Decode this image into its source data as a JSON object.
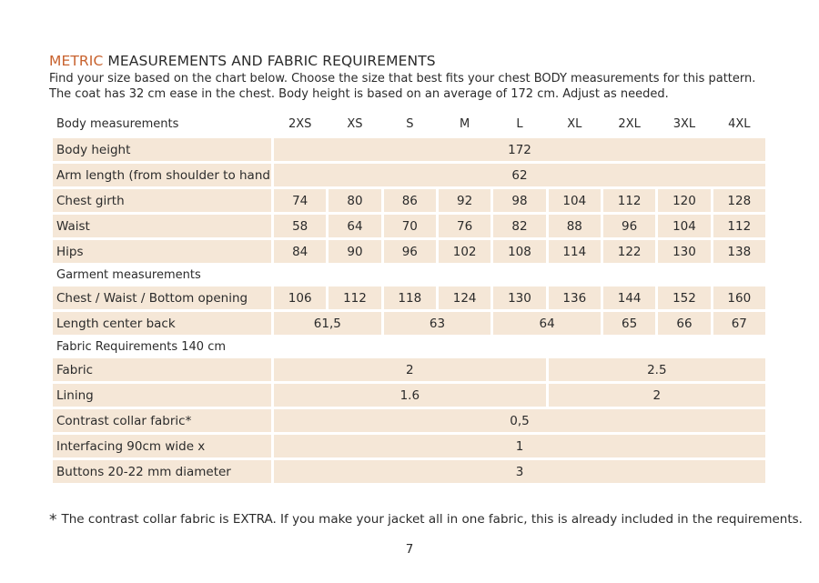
{
  "title": {
    "accent": "METRIC",
    "rest": " MEASUREMENTS AND FABRIC REQUIREMENTS"
  },
  "intro": {
    "line1": "Find your size based on the chart below. Choose the size that best fits your chest BODY measurements for this pattern.",
    "line2": "The coat has 32 cm ease in the chest. Body height is based on an average of 172 cm. Adjust as needed."
  },
  "colors": {
    "accent": "#c8622e",
    "row_fill": "#f5e7d7"
  },
  "table": {
    "sizes": [
      "2XS",
      "XS",
      "S",
      "M",
      "L",
      "XL",
      "2XL",
      "3XL",
      "4XL"
    ],
    "sections": [
      {
        "label": "Body measurements",
        "header_row": true,
        "rows": [
          {
            "label": "Body height",
            "cells": [
              {
                "span": 9,
                "value": "172"
              }
            ]
          },
          {
            "label": "Arm length (from shoulder to hand)",
            "cells": [
              {
                "span": 9,
                "value": "62"
              }
            ]
          },
          {
            "label": "Chest girth",
            "cells": [
              {
                "value": "74"
              },
              {
                "value": "80"
              },
              {
                "value": "86"
              },
              {
                "value": "92"
              },
              {
                "value": "98"
              },
              {
                "value": "104"
              },
              {
                "value": "112"
              },
              {
                "value": "120"
              },
              {
                "value": "128"
              }
            ]
          },
          {
            "label": "Waist",
            "cells": [
              {
                "value": "58"
              },
              {
                "value": "64"
              },
              {
                "value": "70"
              },
              {
                "value": "76"
              },
              {
                "value": "82"
              },
              {
                "value": "88"
              },
              {
                "value": "96"
              },
              {
                "value": "104"
              },
              {
                "value": "112"
              }
            ]
          },
          {
            "label": "Hips",
            "cells": [
              {
                "value": "84"
              },
              {
                "value": "90"
              },
              {
                "value": "96"
              },
              {
                "value": "102"
              },
              {
                "value": "108"
              },
              {
                "value": "114"
              },
              {
                "value": "122"
              },
              {
                "value": "130"
              },
              {
                "value": "138"
              }
            ]
          }
        ]
      },
      {
        "label": "Garment measurements",
        "rows": [
          {
            "label": "Chest / Waist / Bottom opening",
            "cells": [
              {
                "value": "106"
              },
              {
                "value": "112"
              },
              {
                "value": "118"
              },
              {
                "value": "124"
              },
              {
                "value": "130"
              },
              {
                "value": "136"
              },
              {
                "value": "144"
              },
              {
                "value": "152"
              },
              {
                "value": "160"
              }
            ]
          },
          {
            "label": "Length center back",
            "cells": [
              {
                "span": 2,
                "value": "61,5"
              },
              {
                "span": 2,
                "value": "63"
              },
              {
                "span": 2,
                "value": "64"
              },
              {
                "value": "65"
              },
              {
                "value": "66"
              },
              {
                "value": "67"
              }
            ]
          }
        ]
      },
      {
        "label": "Fabric Requirements 140 cm",
        "rows": [
          {
            "label": "Fabric",
            "cells": [
              {
                "span": 5,
                "value": "2"
              },
              {
                "span": 4,
                "value": "2.5"
              }
            ]
          },
          {
            "label": "Lining",
            "cells": [
              {
                "span": 5,
                "value": "1.6"
              },
              {
                "span": 4,
                "value": "2"
              }
            ]
          },
          {
            "label": "Contrast collar fabric*",
            "cells": [
              {
                "span": 9,
                "value": "0,5"
              }
            ]
          },
          {
            "label": "Interfacing  90cm wide x",
            "cells": [
              {
                "span": 9,
                "value": "1"
              }
            ]
          },
          {
            "label": "Buttons 20-22 mm diameter",
            "cells": [
              {
                "span": 9,
                "value": "3"
              }
            ]
          }
        ]
      }
    ]
  },
  "footnote": {
    "star": "*",
    "text": "The contrast collar fabric is EXTRA. If you make your jacket all in one fabric, this is already included in the requirements."
  },
  "page_number": "7"
}
